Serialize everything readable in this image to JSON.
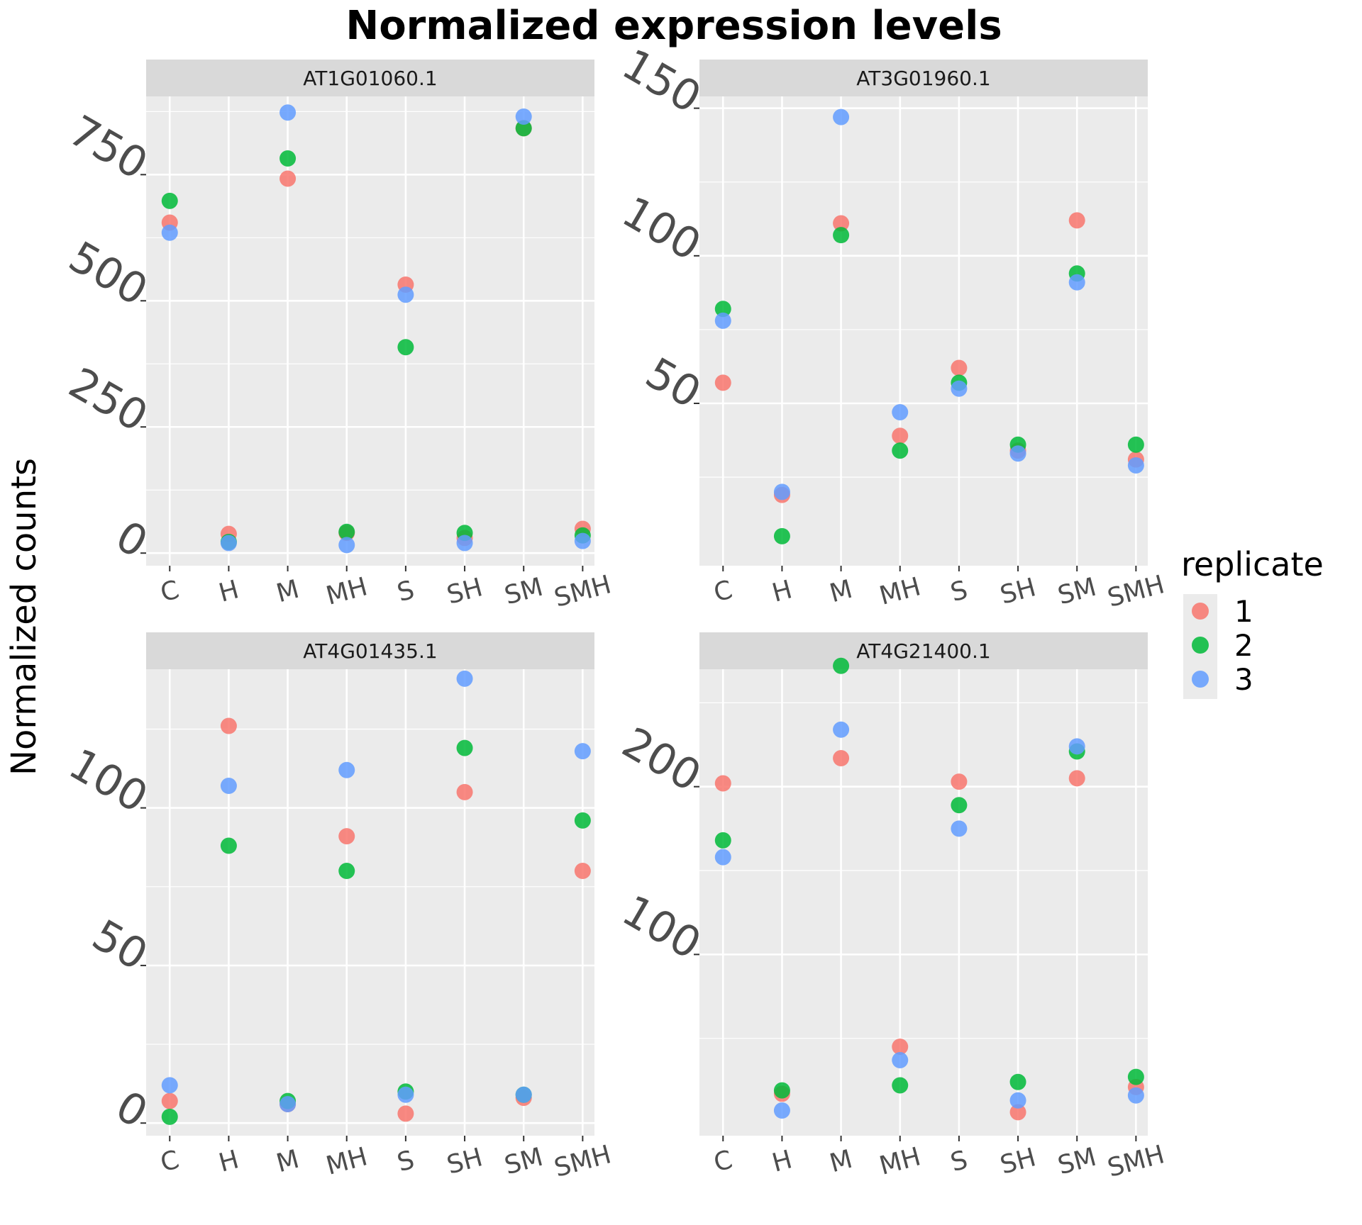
{
  "title": "Normalized expression levels",
  "ylabel": "Normalized counts",
  "legend": {
    "title": "replicate",
    "entries": [
      {
        "label": "1",
        "color": "#F8766D"
      },
      {
        "label": "2",
        "color": "#00BA38"
      },
      {
        "label": "3",
        "color": "#619CFF"
      }
    ]
  },
  "chart_data": [
    {
      "type": "scatter",
      "panel": "AT1G01060.1",
      "categories": [
        "C",
        "H",
        "M",
        "MH",
        "S",
        "SH",
        "SM",
        "SMH"
      ],
      "ylim": [
        -25,
        905
      ],
      "yticks": [
        0,
        250,
        500,
        750
      ],
      "series": [
        {
          "name": "1",
          "values": [
            655,
            38,
            742,
            40,
            532,
            30,
            842,
            48
          ]
        },
        {
          "name": "2",
          "values": [
            698,
            22,
            782,
            42,
            408,
            40,
            842,
            35
          ]
        },
        {
          "name": "3",
          "values": [
            635,
            20,
            873,
            16,
            512,
            20,
            865,
            24
          ]
        }
      ]
    },
    {
      "type": "scatter",
      "panel": "AT3G01960.1",
      "categories": [
        "C",
        "H",
        "M",
        "MH",
        "S",
        "SH",
        "SM",
        "SMH"
      ],
      "ylim": [
        -5,
        154
      ],
      "yticks": [
        50,
        100,
        150
      ],
      "series": [
        {
          "name": "1",
          "values": [
            57,
            19,
            111,
            39,
            62,
            34,
            112,
            31
          ]
        },
        {
          "name": "2",
          "values": [
            82,
            5,
            107,
            34,
            57,
            36,
            94,
            36
          ]
        },
        {
          "name": "3",
          "values": [
            78,
            20,
            147,
            47,
            55,
            33,
            91,
            29
          ]
        }
      ]
    },
    {
      "type": "scatter",
      "panel": "AT4G01435.1",
      "categories": [
        "C",
        "H",
        "M",
        "MH",
        "S",
        "SH",
        "SM",
        "SMH"
      ],
      "ylim": [
        -4,
        144
      ],
      "yticks": [
        0,
        50,
        100
      ],
      "series": [
        {
          "name": "1",
          "values": [
            7,
            126,
            6,
            91,
            3,
            105,
            8,
            80
          ]
        },
        {
          "name": "2",
          "values": [
            2,
            88,
            7,
            80,
            10,
            119,
            9,
            96
          ]
        },
        {
          "name": "3",
          "values": [
            12,
            107,
            6,
            112,
            9,
            141,
            9,
            118
          ]
        }
      ]
    },
    {
      "type": "scatter",
      "panel": "AT4G21400.1",
      "categories": [
        "C",
        "H",
        "M",
        "MH",
        "S",
        "SH",
        "SM",
        "SMH"
      ],
      "ylim": [
        -8,
        270
      ],
      "yticks": [
        100,
        200
      ],
      "series": [
        {
          "name": "1",
          "values": [
            202,
            17,
            217,
            45,
            203,
            6,
            205,
            21
          ]
        },
        {
          "name": "2",
          "values": [
            168,
            19,
            272,
            22,
            189,
            24,
            221,
            27
          ]
        },
        {
          "name": "3",
          "values": [
            158,
            7,
            234,
            37,
            175,
            13,
            224,
            16
          ]
        }
      ]
    }
  ]
}
